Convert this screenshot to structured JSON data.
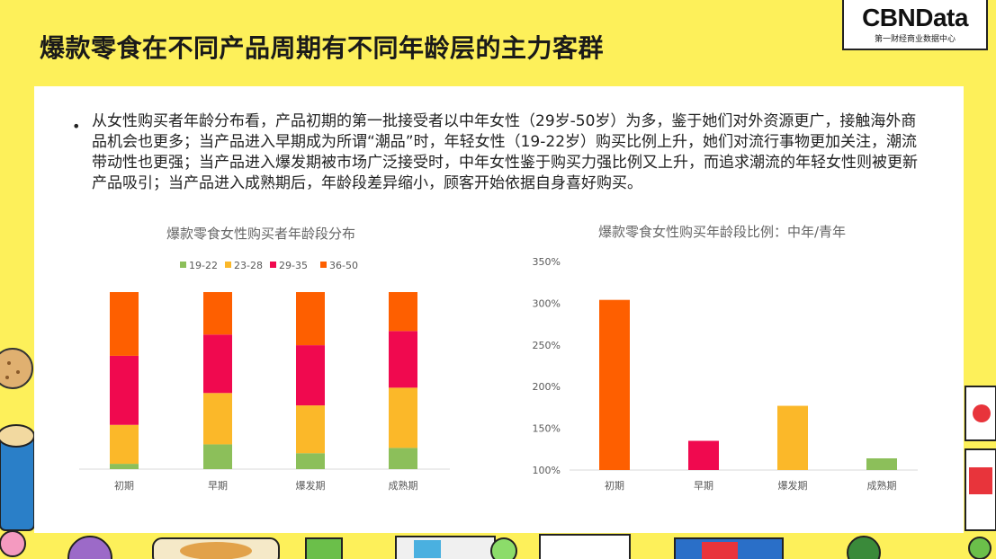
{
  "page": {
    "title": "爆款零食在不同产品周期有不同年龄层的主力客群",
    "logo_name": "CBNData",
    "logo_sub": "第一财经商业数据中心",
    "bullet": "从女性购买者年龄分布看，产品初期的第一批接受者以中年女性（29岁-50岁）为多，鉴于她们对外资源更广，接触海外商品机会也更多；当产品进入早期成为所谓“潮品”时，年轻女性（19-22岁）购买比例上升，她们对流行事物更加关注，潮流带动性也更强；当产品进入爆发期被市场广泛接受时，中年女性鉴于购买力强比例又上升，而追求潮流的年轻女性则被更新产品吸引；当产品进入成熟期后，年龄段差异缩小，顾客开始依据自身喜好购买。"
  },
  "chart_data": [
    {
      "type": "bar",
      "stacked": true,
      "title": "爆款零食女性购买者年龄段分布",
      "categories": [
        "初期",
        "早期",
        "爆发期",
        "成熟期"
      ],
      "series": [
        {
          "name": "19-22",
          "color": "#8cbf5a",
          "values": [
            3,
            14,
            9,
            12
          ]
        },
        {
          "name": "23-28",
          "color": "#fbb829",
          "values": [
            22,
            29,
            27,
            34
          ]
        },
        {
          "name": "29-35",
          "color": "#f0094f",
          "values": [
            39,
            33,
            34,
            32
          ]
        },
        {
          "name": "36-50",
          "color": "#fe5f00",
          "values": [
            36,
            24,
            30,
            22
          ]
        }
      ],
      "ylim": [
        0,
        100
      ],
      "legend": "top",
      "grid": false
    },
    {
      "type": "bar",
      "title": "爆款零食女性购买年龄段比例：中年/青年",
      "categories": [
        "初期",
        "早期",
        "爆发期",
        "成熟期"
      ],
      "values": [
        304,
        135,
        177,
        114
      ],
      "colors": [
        "#fe5f00",
        "#f0094f",
        "#fbb829",
        "#8cbf5a"
      ],
      "ylim": [
        100,
        350
      ],
      "yticks": [
        "100%",
        "150%",
        "200%",
        "250%",
        "300%",
        "350%"
      ],
      "grid": false
    }
  ]
}
